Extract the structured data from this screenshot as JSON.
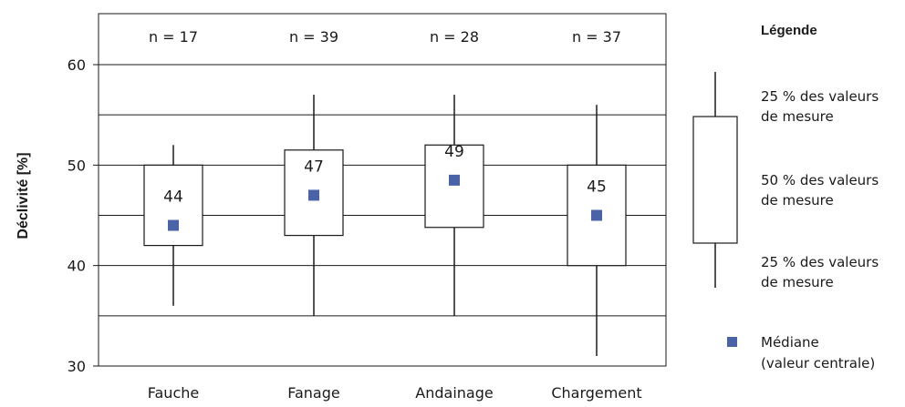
{
  "chart_data": {
    "type": "box",
    "ylabel": "Déclivité [%]",
    "ylim": [
      30,
      60
    ],
    "ytick_values": [
      30,
      40,
      50,
      60
    ],
    "ytick_labels": [
      "30",
      "40",
      "50",
      "60"
    ],
    "grid_values": [
      35,
      40,
      45,
      50,
      55,
      60
    ],
    "categories": [
      "Fauche",
      "Fanage",
      "Andainage",
      "Chargement"
    ],
    "n_labels": [
      "n = 17",
      "n = 39",
      "n = 28",
      "n = 37"
    ],
    "boxes": [
      {
        "min": 36,
        "q1": 42,
        "median": 44,
        "q3": 50,
        "max": 52,
        "median_label": "44"
      },
      {
        "min": 35,
        "q1": 43,
        "median": 47,
        "q3": 51.5,
        "max": 57,
        "median_label": "47"
      },
      {
        "min": 35,
        "q1": 43.8,
        "median": 48.5,
        "q3": 52,
        "max": 57,
        "median_label": "49"
      },
      {
        "min": 31,
        "q1": 40,
        "median": 45,
        "q3": 50,
        "max": 56,
        "median_label": "45"
      }
    ],
    "grid": true
  },
  "legend": {
    "title": "Légende",
    "upper_label_1": "25 % des valeurs",
    "upper_label_2": "de mesure",
    "middle_label_1": "50 % des valeurs",
    "middle_label_2": "de mesure",
    "lower_label_1": "25 % des valeurs",
    "lower_label_2": "de mesure",
    "median_label_1": "Médiane",
    "median_label_2": "(valeur centrale)"
  },
  "colors": {
    "median_marker": "#4a63a8",
    "box_stroke": "#1a1a1a",
    "grid": "#1a1a1a"
  }
}
